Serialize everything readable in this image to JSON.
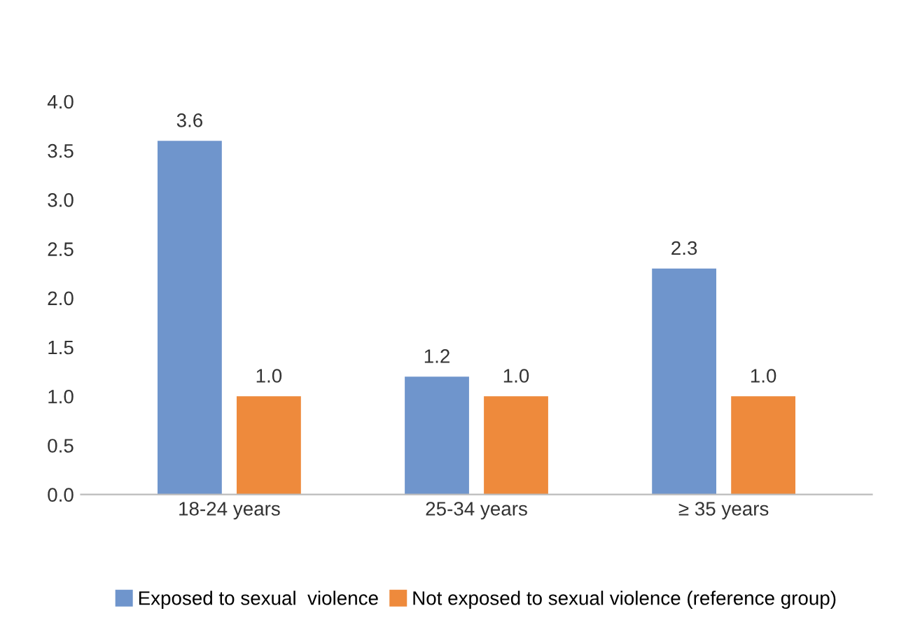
{
  "chart_data": {
    "type": "bar",
    "categories": [
      "18-24 years",
      "25-34 years",
      "≥ 35 years"
    ],
    "series": [
      {
        "name": "Exposed to sexual  violence",
        "color": "#6f95cc",
        "values": [
          3.6,
          1.2,
          2.3
        ],
        "value_labels": [
          "3.6",
          "1.2",
          "2.3"
        ]
      },
      {
        "name": "Not exposed to sexual violence (reference group)",
        "color": "#ee8a3c",
        "values": [
          1.0,
          1.0,
          1.0
        ],
        "value_labels": [
          "1.0",
          "1.0",
          "1.0"
        ]
      }
    ],
    "ylim": [
      0,
      4
    ],
    "yticks": [
      {
        "value": 0,
        "label": "0.0"
      },
      {
        "value": 0.5,
        "label": "0.5"
      },
      {
        "value": 1,
        "label": "1.0"
      },
      {
        "value": 1.5,
        "label": "1.5"
      },
      {
        "value": 2,
        "label": "2.0"
      },
      {
        "value": 2.5,
        "label": "2.5"
      },
      {
        "value": 3,
        "label": "3.0"
      },
      {
        "value": 3.5,
        "label": "3.5"
      },
      {
        "value": 4,
        "label": "4.0"
      }
    ],
    "legend": "bottom"
  }
}
